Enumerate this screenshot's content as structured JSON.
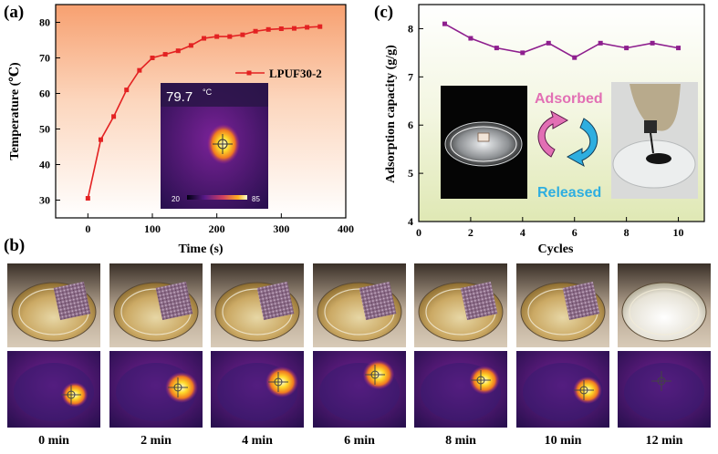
{
  "colors": {
    "series_a": "#e32222",
    "series_c": "#8e1f8e",
    "adsorbed": "#e26fb4",
    "released": "#2eaee0",
    "thermal_dark": "#24103f",
    "thermal_mid": "#8c1fa0",
    "thermal_hot": "#ffd92a"
  },
  "panel_labels": {
    "a": "(a)",
    "b": "(b)",
    "c": "(c)"
  },
  "chart_data": [
    {
      "type": "line",
      "title": "",
      "xlabel": "Time (s)",
      "ylabel": "Temperature (℃)",
      "xlim": [
        -50,
        400
      ],
      "ylim": [
        25,
        85
      ],
      "xticks": [
        0,
        100,
        200,
        300,
        400
      ],
      "yticks": [
        30,
        40,
        50,
        60,
        70,
        80
      ],
      "legend": "LPUF30-2",
      "legend_position": "right-middle",
      "series": [
        {
          "name": "LPUF30-2",
          "x": [
            0,
            20,
            40,
            60,
            80,
            100,
            120,
            140,
            160,
            180,
            200,
            220,
            240,
            260,
            280,
            300,
            320,
            340,
            360
          ],
          "y": [
            30.5,
            47,
            53.5,
            61,
            66.5,
            70,
            71,
            72,
            73.5,
            75.5,
            76,
            76,
            76.5,
            77.5,
            78,
            78.2,
            78.3,
            78.6,
            78.8
          ]
        }
      ],
      "inset": {
        "temperature_readout": "79.7",
        "unit": "°C",
        "scale_min": "20",
        "scale_max": "85"
      }
    },
    {
      "type": "line",
      "title": "",
      "xlabel": "Cycles",
      "ylabel": "Adsorption capacity (g/g)",
      "xlim": [
        0,
        11
      ],
      "ylim": [
        4,
        8.5
      ],
      "xticks": [
        0,
        2,
        4,
        6,
        8,
        10
      ],
      "yticks": [
        4,
        5,
        6,
        7,
        8
      ],
      "series": [
        {
          "name": "Adsorption capacity",
          "x": [
            1,
            2,
            3,
            4,
            5,
            6,
            7,
            8,
            9,
            10
          ],
          "y": [
            8.1,
            7.8,
            7.6,
            7.5,
            7.7,
            7.4,
            7.7,
            7.6,
            7.7,
            7.6
          ]
        }
      ],
      "annotations": {
        "adsorbed": "Adsorbed",
        "released": "Released"
      }
    }
  ],
  "panel_b": {
    "time_labels": [
      "0 min",
      "2 min",
      "4 min",
      "6 min",
      "8 min",
      "10 min",
      "12 min"
    ],
    "hot_spot_strength": [
      0.75,
      1.0,
      1.0,
      0.95,
      0.9,
      0.85,
      0.0
    ]
  }
}
